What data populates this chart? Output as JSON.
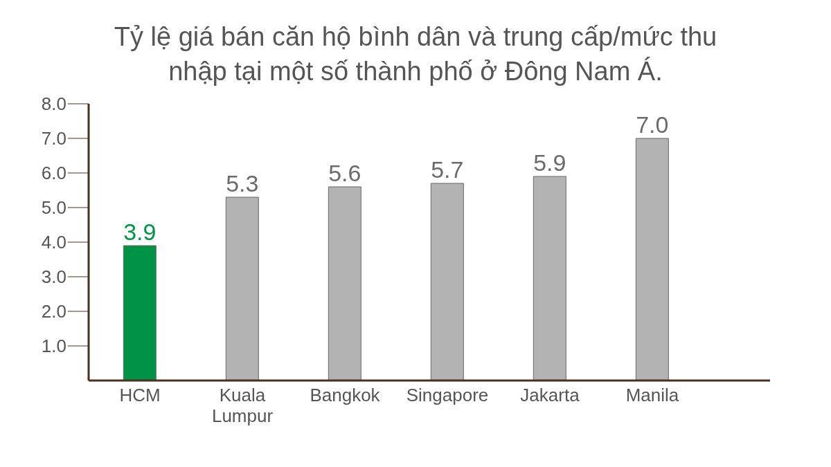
{
  "chart_data": {
    "type": "bar",
    "title": "Tỷ lệ giá bán căn hộ bình dân và trung cấp/mức thu nhập tại một số thành phố ở Đông Nam Á.",
    "categories": [
      "HCM",
      "Kuala Lumpur",
      "Bangkok",
      "Singapore",
      "Jakarta",
      "Manila"
    ],
    "values": [
      3.9,
      5.3,
      5.6,
      5.7,
      5.9,
      7.0
    ],
    "colors": [
      "#009245",
      "#b3b3b3",
      "#b3b3b3",
      "#b3b3b3",
      "#b3b3b3",
      "#b3b3b3"
    ],
    "ylim": [
      0,
      8
    ],
    "yticks": [
      {
        "value": 1,
        "label": "1.0"
      },
      {
        "value": 2,
        "label": "2.0"
      },
      {
        "value": 3,
        "label": "3.0"
      },
      {
        "value": 4,
        "label": "4.0"
      },
      {
        "value": 5,
        "label": "5.0"
      },
      {
        "value": 6,
        "label": "6.0"
      },
      {
        "value": 7,
        "label": "7.0"
      },
      {
        "value": 8,
        "label": "8.0"
      }
    ],
    "value_labels": [
      "3.9",
      "5.3",
      "5.6",
      "5.7",
      "5.9",
      "7.0"
    ],
    "grid": false,
    "legend": false
  }
}
